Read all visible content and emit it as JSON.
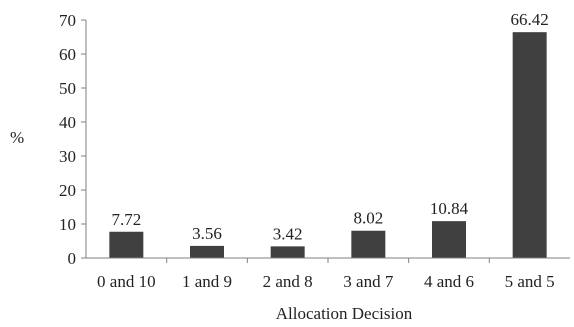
{
  "chart_data": {
    "type": "bar",
    "categories": [
      "0 and 10",
      "1 and 9",
      "2 and 8",
      "3 and 7",
      "4 and 6",
      "5 and 5"
    ],
    "values": [
      7.72,
      3.56,
      3.42,
      8.02,
      10.84,
      66.42
    ],
    "data_labels": [
      "7.72",
      "3.56",
      "3.42",
      "8.02",
      "10.84",
      "66.42"
    ],
    "title": "",
    "xlabel": "Allocation Decision",
    "ylabel": "%",
    "ylim": [
      0,
      70
    ],
    "yticks": [
      0,
      10,
      20,
      30,
      40,
      50,
      60,
      70
    ],
    "grid": false,
    "legend": "none",
    "colors": {
      "bar": "#404040",
      "axis": "#7f7f7f",
      "text": "#222222"
    }
  }
}
